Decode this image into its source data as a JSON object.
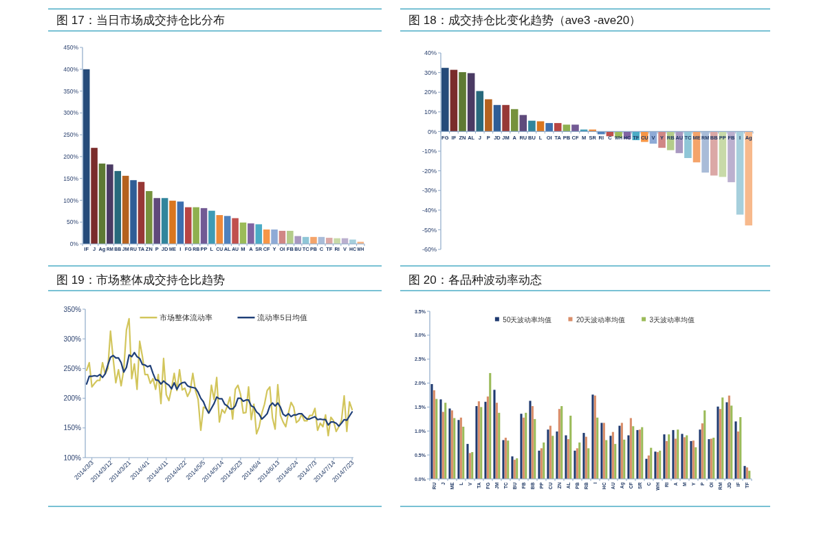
{
  "chart_data": [
    {
      "type": "bar",
      "title": "图 17：当日市场成交持仓比分布",
      "categories": [
        "IF",
        "J",
        "Ag",
        "RM",
        "BB",
        "JM",
        "RU",
        "TA",
        "ZN",
        "P",
        "JD",
        "ME",
        "I",
        "FG",
        "RB",
        "PP",
        "L",
        "CU",
        "AL",
        "AU",
        "M",
        "A",
        "SR",
        "CF",
        "Y",
        "OI",
        "FB",
        "BU",
        "TC",
        "PB",
        "C",
        "TF",
        "RI",
        "V",
        "HC",
        "WH"
      ],
      "values": [
        400,
        220,
        184,
        182,
        167,
        156,
        146,
        142,
        121,
        105,
        105,
        99,
        97,
        84,
        84,
        82,
        76,
        66,
        64,
        59,
        49,
        47,
        45,
        33,
        33,
        30,
        30,
        18,
        16,
        16,
        16,
        14,
        13,
        13,
        10,
        5
      ],
      "colors": [
        "#254b7a",
        "#7a2c2b",
        "#5e7a33",
        "#4a3a63",
        "#28697c",
        "#b5621f",
        "#2f5d96",
        "#973836",
        "#76923c",
        "#5f4a7b",
        "#31859c",
        "#d9761f",
        "#3d6fae",
        "#b84543",
        "#8fb04f",
        "#725a94",
        "#3f9bb5",
        "#ef8a3a",
        "#4f81bd",
        "#c0504d",
        "#9bbb59",
        "#8064a2",
        "#4bacc6",
        "#f79646",
        "#8eaad6",
        "#d08785",
        "#b4cc8a",
        "#a898c0",
        "#8fc6d7",
        "#f4a46a",
        "#a9bcd8",
        "#dba8a6",
        "#c8daa8",
        "#bbb0cf",
        "#a6cfdc",
        "#f7b98c"
      ],
      "ylim": [
        0,
        450
      ],
      "yticks": [
        {
          "value": 0,
          "label": "0%"
        },
        {
          "value": 50,
          "label": "50%"
        },
        {
          "value": 100,
          "label": "100%"
        },
        {
          "value": 150,
          "label": "150%"
        },
        {
          "value": 200,
          "label": "200%"
        },
        {
          "value": 250,
          "label": "250%"
        },
        {
          "value": 300,
          "label": "300%"
        },
        {
          "value": 350,
          "label": "350%"
        },
        {
          "value": 400,
          "label": "400%"
        },
        {
          "value": 450,
          "label": "450%"
        }
      ]
    },
    {
      "type": "bar",
      "title": "图 18：成交持仓比变化趋势（ave3 -ave20）",
      "categories": [
        "FG",
        "IF",
        "ZN",
        "AL",
        "J",
        "P",
        "JD",
        "JM",
        "A",
        "RU",
        "BU",
        "L",
        "OI",
        "TA",
        "PB",
        "CF",
        "M",
        "SR",
        "RI",
        "C",
        "WH",
        "HC",
        "TF",
        "CU",
        "V",
        "Y",
        "RB",
        "AU",
        "TC",
        "ME",
        "RM",
        "BB",
        "PP",
        "FB",
        "I",
        "Ag"
      ],
      "values": [
        32.4,
        31.4,
        30.2,
        29.7,
        20.6,
        16.4,
        13.5,
        13.5,
        11.4,
        8.4,
        5.5,
        5.2,
        4.3,
        4.3,
        3.5,
        3.5,
        1.0,
        1.0,
        -1.4,
        -2.4,
        -3.1,
        -3.8,
        -4.4,
        -5.3,
        -6.2,
        -8.3,
        -9.5,
        -11.0,
        -13.5,
        -15.7,
        -20.9,
        -22.4,
        -23.1,
        -25.8,
        -42.3,
        -47.8
      ],
      "colors": [
        "#254b7a",
        "#7a2c2b",
        "#5e7a33",
        "#4a3a63",
        "#28697c",
        "#b5621f",
        "#2f5d96",
        "#973836",
        "#76923c",
        "#5f4a7b",
        "#31859c",
        "#d9761f",
        "#3d6fae",
        "#b84543",
        "#8fb04f",
        "#725a94",
        "#3f9bb5",
        "#ef8a3a",
        "#4f81bd",
        "#c0504d",
        "#9bbb59",
        "#8064a2",
        "#4bacc6",
        "#f79646",
        "#8eaad6",
        "#d08785",
        "#b4cc8a",
        "#a898c0",
        "#8fc6d7",
        "#f4a46a",
        "#a9bcd8",
        "#dba8a6",
        "#c8daa8",
        "#bbb0cf",
        "#a6cfdc",
        "#f7b98c"
      ],
      "ylim": [
        -60,
        40
      ],
      "yticks": [
        {
          "value": -60,
          "label": "-60%"
        },
        {
          "value": -50,
          "label": "-50%"
        },
        {
          "value": -40,
          "label": "-40%"
        },
        {
          "value": -30,
          "label": "-30%"
        },
        {
          "value": -20,
          "label": "-20%"
        },
        {
          "value": -10,
          "label": "-10%"
        },
        {
          "value": 0,
          "label": "0%"
        },
        {
          "value": 10,
          "label": "10%"
        },
        {
          "value": 20,
          "label": "20%"
        },
        {
          "value": 30,
          "label": "30%"
        },
        {
          "value": 40,
          "label": "40%"
        }
      ]
    },
    {
      "type": "line",
      "title": "图 19：市场整体成交持仓比趋势",
      "categories": [
        null,
        null,
        "2014/3/3",
        null,
        null,
        null,
        null,
        null,
        null,
        "2014/3/12",
        null,
        null,
        null,
        null,
        null,
        null,
        "2014/3/21",
        null,
        null,
        null,
        null,
        null,
        null,
        "2014/4/1",
        null,
        null,
        null,
        null,
        null,
        null,
        "2014/4/11",
        null,
        null,
        null,
        null,
        null,
        null,
        "2014/4/22",
        null,
        null,
        null,
        null,
        null,
        null,
        "2014/5/5",
        null,
        null,
        null,
        null,
        null,
        null,
        "2014/5/14",
        null,
        null,
        null,
        null,
        null,
        null,
        "2014/5/23",
        null,
        null,
        null,
        null,
        null,
        null,
        "2014/6/4",
        null,
        null,
        null,
        null,
        null,
        null,
        "2014/6/13",
        null,
        null,
        null,
        null,
        null,
        null,
        "2014/6/24",
        null,
        null,
        null,
        null,
        null,
        null,
        "2014/7/3",
        null,
        null,
        null,
        null,
        null,
        null,
        "2014/7/14",
        null,
        null,
        null,
        null,
        null,
        null,
        "2014/7/23"
      ],
      "series": [
        {
          "name": "市场整体流动率",
          "color": "#d2c55b",
          "values": [
            247,
            260,
            219,
            225,
            230,
            230,
            260,
            241,
            250,
            313,
            267,
            226,
            248,
            221,
            248,
            315,
            334,
            233,
            258,
            215,
            296,
            271,
            240,
            240,
            225,
            233,
            215,
            240,
            191,
            267,
            206,
            196,
            217,
            242,
            213,
            248,
            214,
            217,
            203,
            212,
            242,
            213,
            198,
            146,
            185,
            183,
            175,
            222,
            198,
            235,
            160,
            181,
            175,
            187,
            202,
            165,
            215,
            222,
            206,
            175,
            176,
            219,
            164,
            190,
            140,
            152,
            175,
            190,
            213,
            219,
            167,
            148,
            223,
            171,
            160,
            152,
            175,
            193,
            185,
            159,
            163,
            173,
            162,
            162,
            171,
            171,
            183,
            146,
            158,
            152,
            172,
            137,
            168,
            162,
            144,
            152,
            163,
            204,
            144,
            194,
            181
          ]
        },
        {
          "name": "流动率5日均值",
          "color": "#1f3f78",
          "values": [
            224,
            237,
            237,
            238,
            237,
            240,
            235,
            241,
            256,
            269,
            272,
            268,
            268,
            260,
            244,
            252,
            273,
            270,
            277,
            270,
            267,
            257,
            256,
            253,
            255,
            242,
            231,
            230,
            224,
            229,
            225,
            222,
            216,
            226,
            215,
            223,
            226,
            227,
            221,
            219,
            218,
            217,
            210,
            200,
            194,
            183,
            175,
            183,
            191,
            202,
            199,
            199,
            190,
            187,
            182,
            182,
            187,
            200,
            200,
            195,
            197,
            197,
            187,
            185,
            177,
            173,
            165,
            169,
            174,
            187,
            192,
            187,
            192,
            185,
            173,
            170,
            174,
            169,
            172,
            172,
            174,
            174,
            169,
            165,
            165,
            167,
            169,
            164,
            165,
            164,
            164,
            155,
            160,
            160,
            158,
            153,
            158,
            164,
            163,
            170,
            177
          ]
        }
      ],
      "ylim": [
        100,
        350
      ],
      "yticks": [
        {
          "value": 100,
          "label": "100%"
        },
        {
          "value": 150,
          "label": "150%"
        },
        {
          "value": 200,
          "label": "200%"
        },
        {
          "value": 250,
          "label": "250%"
        },
        {
          "value": 300,
          "label": "300%"
        },
        {
          "value": 350,
          "label": "350%"
        }
      ],
      "legend": "top"
    },
    {
      "type": "bar",
      "title": "图 20：各品种波动率动态",
      "categories": [
        "RU",
        "J",
        "ME",
        "L",
        "V",
        "TA",
        "FG",
        "JM",
        "TC",
        "BU",
        "FB",
        "BB",
        "PP",
        "CU",
        "ZN",
        "AL",
        "PB",
        "RB",
        "I",
        "HC",
        "AU",
        "Ag",
        "CF",
        "SR",
        "C",
        "WH",
        "RI",
        "A",
        "M",
        "Y",
        "P",
        "OI",
        "RM",
        "JD",
        "IF",
        "TF"
      ],
      "series": [
        {
          "name": "50天波动率均值",
          "color": "#1f3a70",
          "values": [
            1.98,
            1.66,
            1.47,
            1.23,
            0.73,
            1.52,
            1.61,
            1.86,
            0.81,
            0.47,
            1.36,
            1.63,
            0.59,
            1.03,
            0.99,
            0.91,
            0.59,
            0.96,
            1.76,
            1.17,
            0.9,
            1.11,
            0.91,
            1.02,
            0.42,
            0.57,
            0.93,
            1.02,
            0.94,
            0.79,
            1.03,
            0.83,
            1.51,
            1.6,
            1.2,
            0.27
          ]
        },
        {
          "name": "20天波动率均值",
          "color": "#d98e6a",
          "values": [
            1.85,
            1.4,
            1.43,
            1.28,
            0.54,
            1.62,
            1.72,
            1.59,
            0.86,
            0.4,
            1.28,
            1.52,
            0.64,
            1.11,
            1.46,
            0.83,
            0.64,
            0.88,
            1.74,
            1.17,
            0.98,
            1.17,
            1.27,
            1.03,
            0.49,
            0.56,
            0.79,
            0.84,
            0.87,
            0.8,
            1.16,
            0.84,
            1.46,
            1.74,
            0.99,
            0.24
          ]
        },
        {
          "name": "3天波动率均值",
          "color": "#9bbb59",
          "values": [
            1.67,
            1.59,
            1.27,
            1.09,
            0.56,
            1.5,
            2.21,
            1.38,
            0.8,
            0.43,
            1.38,
            1.25,
            0.76,
            0.9,
            1.52,
            1.32,
            0.76,
            0.64,
            1.28,
            0.81,
            0.73,
            0.82,
            1.1,
            1.08,
            0.65,
            0.59,
            0.93,
            1.03,
            0.91,
            0.66,
            1.43,
            0.86,
            1.7,
            1.53,
            1.29,
            0.17
          ]
        }
      ],
      "ylim": [
        0,
        3.5
      ],
      "yticks": [
        {
          "value": 0,
          "label": "0.0%"
        },
        {
          "value": 0.5,
          "label": "0.5%"
        },
        {
          "value": 1,
          "label": "1.0%"
        },
        {
          "value": 1.5,
          "label": "1.5%"
        },
        {
          "value": 2,
          "label": "2.0%"
        },
        {
          "value": 2.5,
          "label": "2.5%"
        },
        {
          "value": 3,
          "label": "3.0%"
        },
        {
          "value": 3.5,
          "label": "3.5%"
        }
      ],
      "legend": "top"
    }
  ]
}
